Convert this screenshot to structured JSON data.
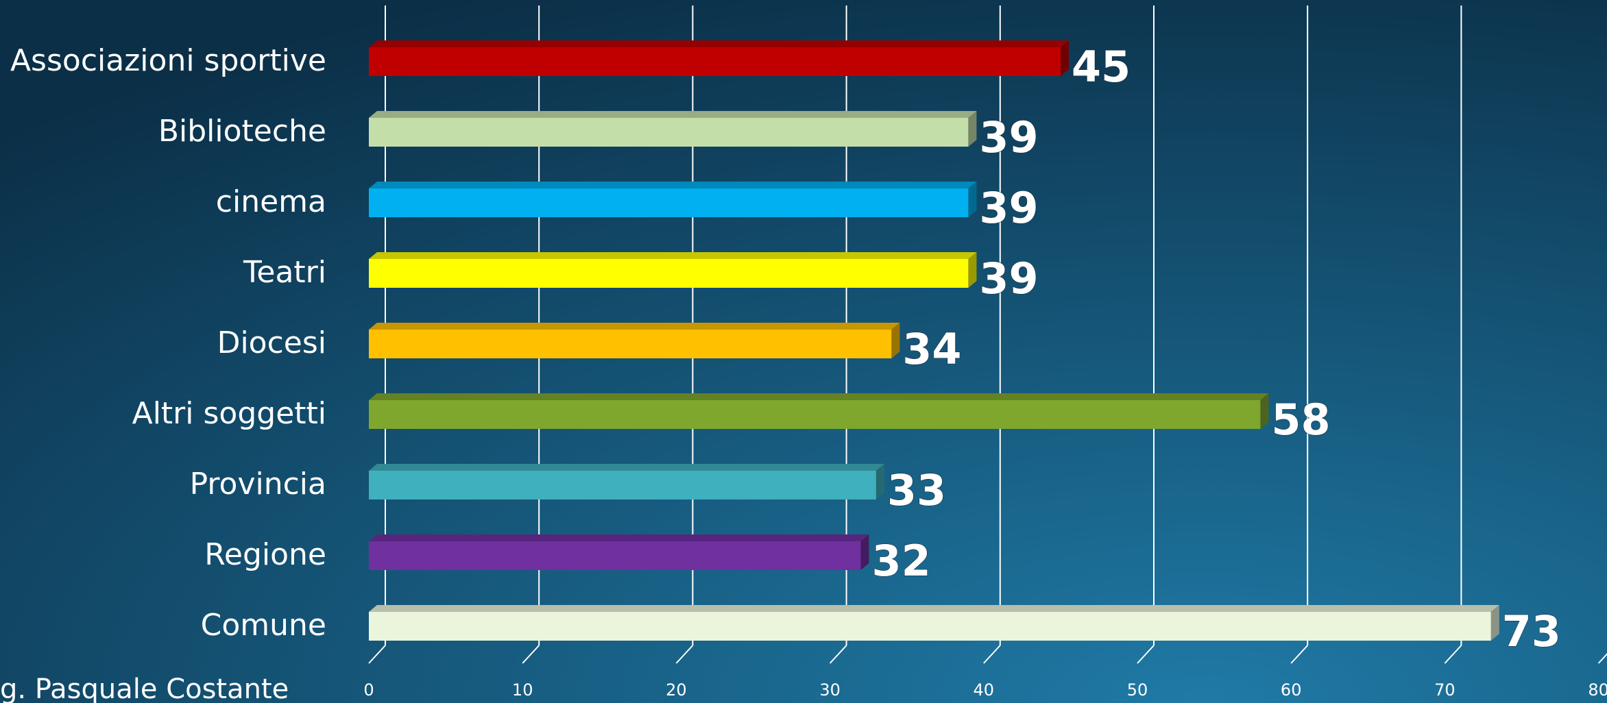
{
  "chart_data": {
    "type": "bar",
    "orientation": "horizontal",
    "categories": [
      "Associazioni sportive",
      "Biblioteche",
      "cinema",
      "Teatri",
      "Diocesi",
      "Altri soggetti",
      "Provincia",
      "Regione",
      "Comune"
    ],
    "values": [
      45,
      39,
      39,
      39,
      34,
      58,
      33,
      32,
      73
    ],
    "colors": [
      "#c00000",
      "#c3dea9",
      "#00b0f0",
      "#ffff00",
      "#ffc000",
      "#7fa72e",
      "#3fb0bd",
      "#7030a0",
      "#ebf5dc"
    ],
    "xlim": [
      0,
      80
    ],
    "xticks": [
      0,
      10,
      20,
      30,
      40,
      50,
      60,
      70,
      80
    ],
    "grid": true,
    "footer": "g. Pasquale Costante"
  }
}
